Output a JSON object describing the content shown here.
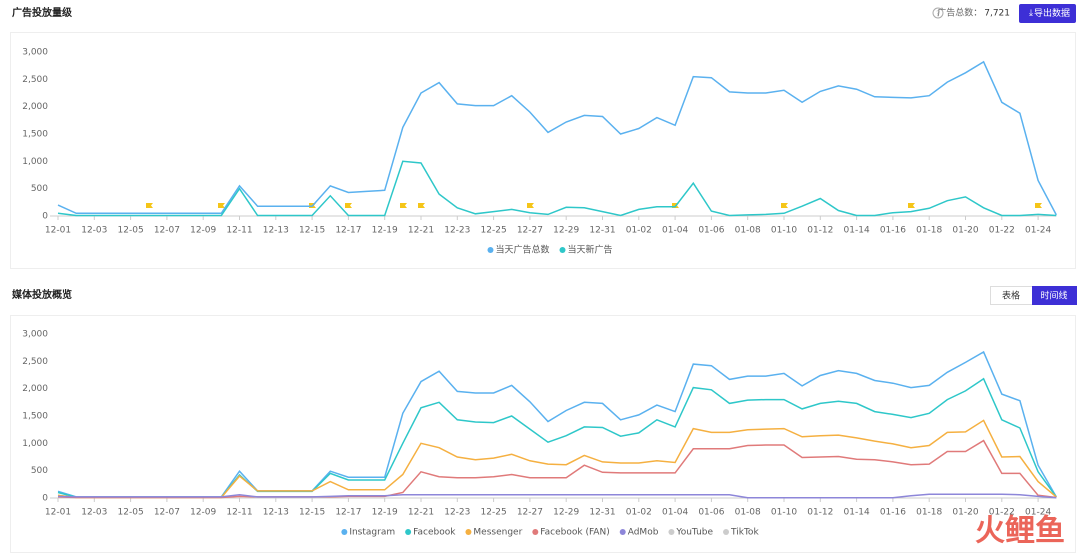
{
  "section1": {
    "title": "广告投放量级",
    "total_label": "广告总数：",
    "total_value": "7,721",
    "export_button": "导出数据"
  },
  "section2": {
    "title": "媒体投放概览",
    "tabs": [
      "表格",
      "时间线"
    ],
    "active_tab": 1
  },
  "watermark": "火鲤鱼",
  "chart_data": [
    {
      "type": "line",
      "categories": [
        "12-01",
        null,
        "12-03",
        null,
        "12-05",
        null,
        "12-07",
        null,
        "12-09",
        null,
        "12-11",
        null,
        "12-13",
        null,
        "12-15",
        null,
        "12-17",
        null,
        "12-19",
        null,
        "12-21",
        null,
        "12-23",
        null,
        "12-25",
        null,
        "12-27",
        null,
        "12-29",
        null,
        "12-31",
        null,
        "01-02",
        null,
        "01-04",
        null,
        "01-06",
        null,
        "01-08",
        null,
        "01-10",
        null,
        "01-12",
        null,
        "01-14",
        null,
        "01-16",
        null,
        "01-18",
        null,
        "01-20",
        null,
        "01-22",
        null,
        "01-24",
        null
      ],
      "ylim": [
        0,
        3000
      ],
      "yticks": [
        0,
        500,
        {
          "value": 1000,
          "label": "1,000"
        },
        {
          "value": 1500,
          "label": "1,500"
        },
        {
          "value": 2000,
          "label": "2,000"
        },
        {
          "value": 2500,
          "label": "2,500"
        },
        {
          "value": 3000,
          "label": "3,000"
        }
      ],
      "grid": false,
      "legend": "bottom",
      "series": [
        {
          "name": "当天广告总数",
          "color": "#5ab1ef",
          "values": [
            200,
            50,
            50,
            50,
            50,
            50,
            50,
            50,
            50,
            50,
            550,
            180,
            180,
            180,
            180,
            550,
            430,
            450,
            470,
            1620,
            2250,
            2440,
            2050,
            2020,
            2020,
            2200,
            1900,
            1530,
            1720,
            1840,
            1820,
            1500,
            1600,
            1800,
            1660,
            2550,
            2530,
            2270,
            2250,
            2250,
            2300,
            2080,
            2280,
            2380,
            2320,
            2180,
            2170,
            2160,
            2200,
            2450,
            2620,
            2820,
            2080,
            1880,
            650,
            20
          ]
        },
        {
          "name": "当天新广告",
          "color": "#2ec7c9",
          "values": [
            50,
            10,
            10,
            10,
            10,
            10,
            10,
            10,
            10,
            10,
            500,
            10,
            10,
            10,
            10,
            370,
            10,
            10,
            10,
            1000,
            970,
            400,
            150,
            40,
            80,
            120,
            60,
            30,
            160,
            150,
            80,
            10,
            120,
            170,
            170,
            600,
            90,
            10,
            20,
            30,
            50,
            180,
            320,
            100,
            10,
            10,
            60,
            80,
            140,
            280,
            350,
            150,
            10,
            10,
            30,
            10
          ]
        }
      ]
    },
    {
      "type": "line",
      "categories": [
        "12-01",
        null,
        "12-03",
        null,
        "12-05",
        null,
        "12-07",
        null,
        "12-09",
        null,
        "12-11",
        null,
        "12-13",
        null,
        "12-15",
        null,
        "12-17",
        null,
        "12-19",
        null,
        "12-21",
        null,
        "12-23",
        null,
        "12-25",
        null,
        "12-27",
        null,
        "12-29",
        null,
        "12-31",
        null,
        "01-02",
        null,
        "01-04",
        null,
        "01-06",
        null,
        "01-08",
        null,
        "01-10",
        null,
        "01-12",
        null,
        "01-14",
        null,
        "01-16",
        null,
        "01-18",
        null,
        "01-20",
        null,
        "01-22",
        null,
        "01-24",
        null
      ],
      "ylim": [
        0,
        3000
      ],
      "yticks": [
        0,
        500,
        {
          "value": 1000,
          "label": "1,000"
        },
        {
          "value": 1500,
          "label": "1,500"
        },
        {
          "value": 2000,
          "label": "2,000"
        },
        {
          "value": 2500,
          "label": "2,500"
        },
        {
          "value": 3000,
          "label": "3,000"
        }
      ],
      "grid": false,
      "legend": "bottom",
      "series": [
        {
          "name": "Instagram",
          "color": "#5ab1ef",
          "values": [
            120,
            20,
            20,
            20,
            20,
            20,
            20,
            20,
            20,
            20,
            490,
            130,
            130,
            130,
            130,
            490,
            380,
            380,
            380,
            1550,
            2130,
            2320,
            1950,
            1920,
            1920,
            2060,
            1760,
            1400,
            1600,
            1750,
            1730,
            1430,
            1520,
            1700,
            1580,
            2450,
            2420,
            2170,
            2230,
            2230,
            2280,
            2050,
            2240,
            2330,
            2280,
            2150,
            2100,
            2020,
            2060,
            2300,
            2480,
            2670,
            1900,
            1780,
            600,
            20
          ]
        },
        {
          "name": "Facebook",
          "color": "#2ec7c9",
          "values": [
            100,
            15,
            15,
            15,
            15,
            15,
            15,
            15,
            15,
            15,
            420,
            120,
            120,
            120,
            120,
            450,
            330,
            330,
            330,
            1000,
            1650,
            1750,
            1430,
            1390,
            1380,
            1500,
            1260,
            1020,
            1140,
            1300,
            1290,
            1130,
            1190,
            1430,
            1300,
            2020,
            1980,
            1730,
            1790,
            1800,
            1800,
            1630,
            1730,
            1770,
            1730,
            1580,
            1530,
            1470,
            1550,
            1800,
            1960,
            2180,
            1430,
            1280,
            480,
            20
          ]
        },
        {
          "name": "Messenger",
          "color": "#f5b041",
          "values": [
            50,
            10,
            10,
            10,
            10,
            10,
            10,
            10,
            10,
            10,
            400,
            130,
            130,
            130,
            130,
            300,
            150,
            150,
            150,
            430,
            1000,
            920,
            750,
            700,
            730,
            800,
            680,
            620,
            610,
            780,
            660,
            640,
            640,
            680,
            650,
            1270,
            1200,
            1200,
            1250,
            1260,
            1270,
            1120,
            1140,
            1150,
            1100,
            1040,
            990,
            920,
            960,
            1200,
            1210,
            1420,
            750,
            760,
            300,
            20
          ]
        },
        {
          "name": "Facebook (FAN)",
          "color": "#e07a7a",
          "values": [
            20,
            10,
            10,
            10,
            10,
            10,
            10,
            10,
            10,
            10,
            30,
            20,
            20,
            20,
            20,
            20,
            30,
            30,
            30,
            100,
            480,
            390,
            370,
            370,
            390,
            430,
            370,
            370,
            370,
            600,
            470,
            460,
            460,
            460,
            460,
            900,
            900,
            900,
            960,
            970,
            970,
            740,
            750,
            760,
            710,
            700,
            660,
            610,
            620,
            850,
            850,
            1050,
            450,
            450,
            50,
            10
          ]
        },
        {
          "name": "AdMob",
          "color": "#8d86d9",
          "values": [
            30,
            20,
            20,
            20,
            20,
            20,
            20,
            20,
            20,
            20,
            60,
            20,
            20,
            20,
            20,
            30,
            40,
            40,
            40,
            60,
            60,
            60,
            60,
            60,
            60,
            60,
            60,
            60,
            60,
            60,
            60,
            60,
            60,
            60,
            60,
            60,
            60,
            60,
            5,
            5,
            5,
            5,
            5,
            5,
            5,
            5,
            5,
            40,
            70,
            70,
            70,
            70,
            70,
            60,
            30,
            5
          ]
        },
        {
          "name": "YouTube",
          "color": "#cccccc",
          "visible": false
        },
        {
          "name": "TikTok",
          "color": "#cccccc",
          "visible": false
        }
      ]
    }
  ]
}
